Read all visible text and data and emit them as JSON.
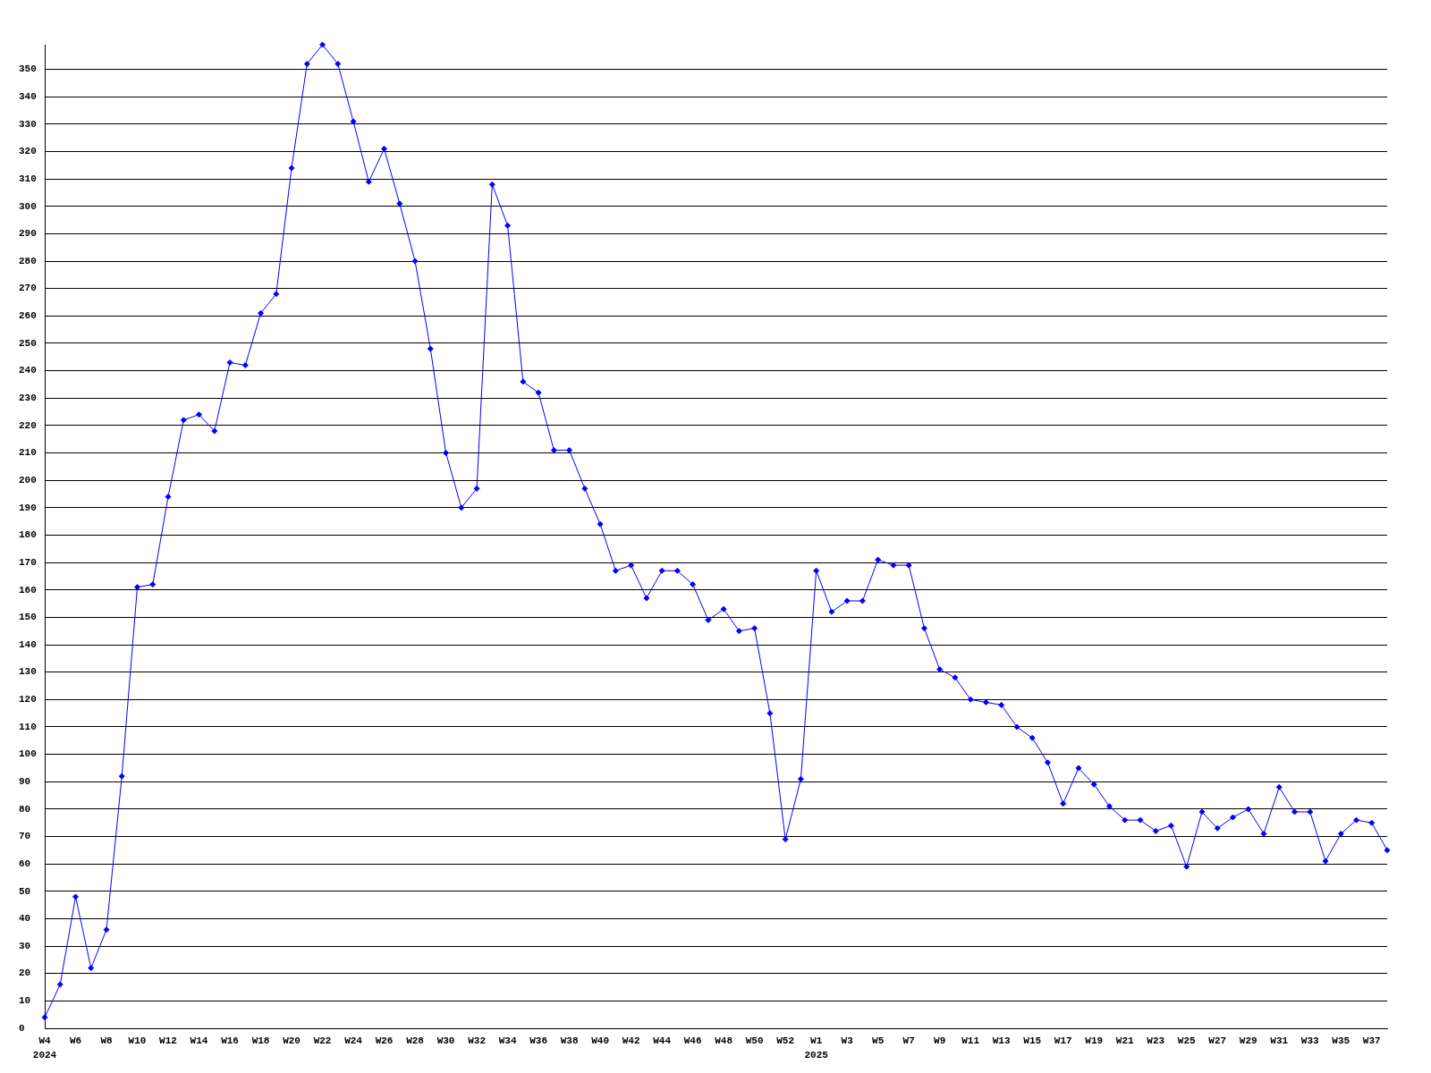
{
  "chart_data": {
    "type": "line",
    "categories": [
      "W4\n2024",
      null,
      "W6",
      null,
      "W8",
      null,
      "W10",
      null,
      "W12",
      null,
      "W14",
      null,
      "W16",
      null,
      "W18",
      null,
      "W20",
      null,
      "W22",
      null,
      "W24",
      null,
      "W26",
      null,
      "W28",
      null,
      "W30",
      null,
      "W32",
      null,
      "W34",
      null,
      "W36",
      null,
      "W38",
      null,
      "W40",
      null,
      "W42",
      null,
      "W44",
      null,
      "W46",
      null,
      "W48",
      null,
      "W50",
      null,
      "W52",
      null,
      "W1\n2025",
      null,
      "W3",
      null,
      "W5",
      null,
      "W7",
      null,
      "W9",
      null,
      "W11",
      null,
      "W13",
      null,
      "W15",
      null,
      "W17",
      null,
      "W19",
      null,
      "W21",
      null,
      "W23",
      null,
      "W25",
      null,
      "W27",
      null,
      "W29",
      null,
      "W31",
      null,
      "W33",
      null,
      "W35",
      null,
      "W37",
      null
    ],
    "values": [
      4,
      16,
      48,
      22,
      36,
      92,
      161,
      162,
      194,
      222,
      224,
      218,
      243,
      242,
      261,
      268,
      314,
      352,
      359,
      352,
      331,
      309,
      321,
      301,
      280,
      248,
      210,
      190,
      197,
      308,
      293,
      236,
      232,
      211,
      211,
      197,
      184,
      167,
      169,
      157,
      167,
      167,
      162,
      149,
      153,
      145,
      146,
      115,
      69,
      91,
      167,
      152,
      156,
      156,
      171,
      169,
      169,
      146,
      131,
      128,
      120,
      119,
      118,
      110,
      106,
      97,
      82,
      95,
      89,
      81,
      76,
      76,
      72,
      74,
      59,
      79,
      73,
      77,
      80,
      71,
      88,
      79,
      79,
      61,
      71,
      76,
      75,
      65
    ],
    "color": "#0000ff",
    "ylim": [
      0,
      359
    ],
    "yticks": [
      0,
      10,
      20,
      30,
      40,
      50,
      60,
      70,
      80,
      90,
      100,
      110,
      120,
      130,
      140,
      150,
      160,
      170,
      180,
      190,
      200,
      210,
      220,
      230,
      240,
      250,
      260,
      270,
      280,
      290,
      300,
      310,
      320,
      330,
      340,
      350
    ],
    "grid": "y",
    "marker": "diamond",
    "line_style": "solid"
  }
}
